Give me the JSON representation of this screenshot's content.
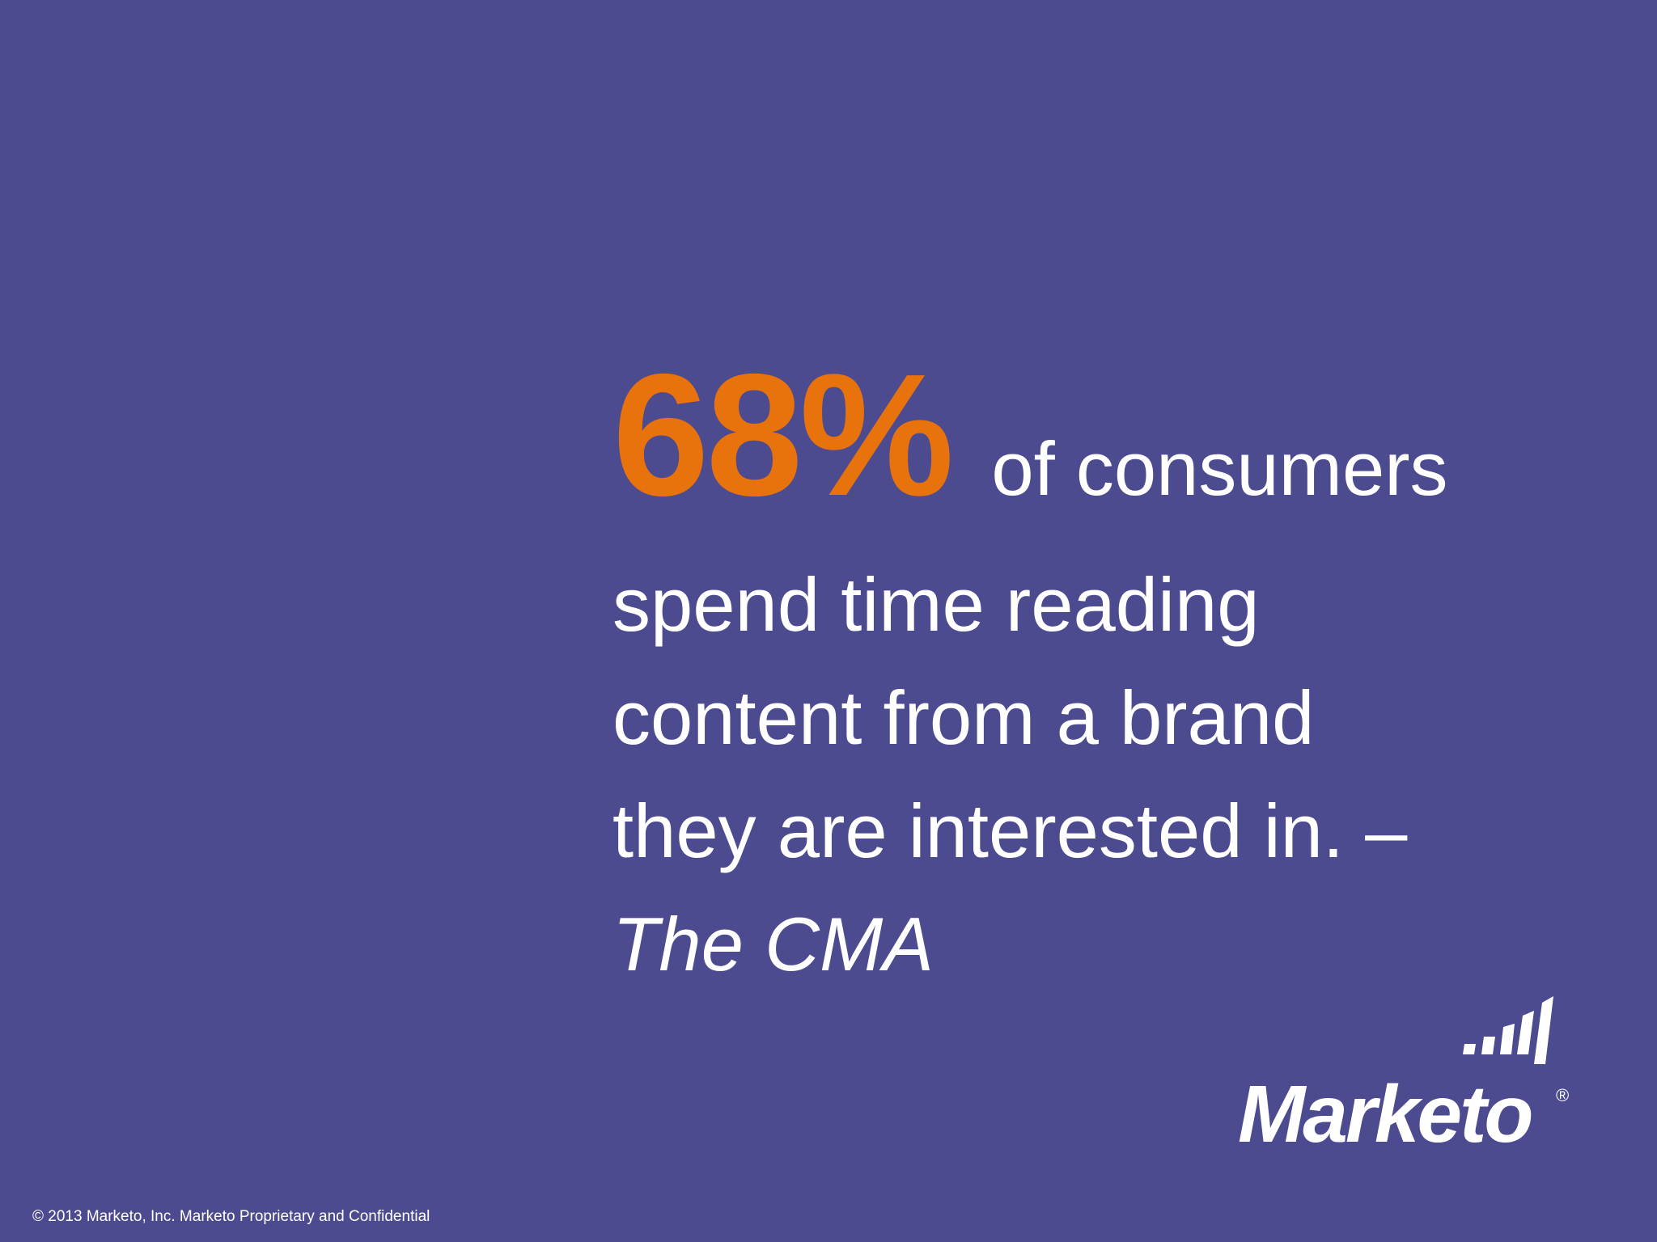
{
  "slide": {
    "stat": "68%",
    "lead": "of consumers",
    "lines": [
      "spend time reading",
      "content from a brand",
      "they are interested in. –"
    ],
    "source": "The CMA",
    "logo_text": "Marketo",
    "logo_mark": "®",
    "copyright": "© 2013 Marketo, Inc. Marketo Proprietary and Confidential"
  },
  "colors": {
    "background": "#4d4b8f",
    "accent": "#e8720c",
    "text": "#ffffff"
  }
}
